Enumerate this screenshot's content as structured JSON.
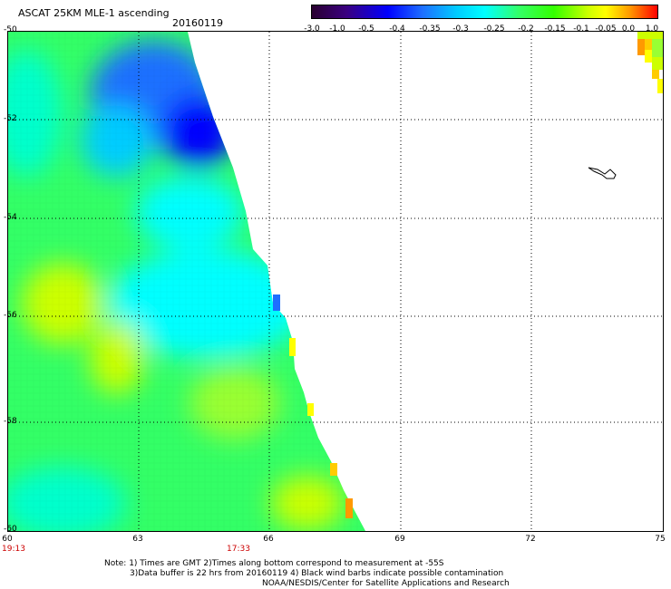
{
  "header": {
    "title": "ASCAT 25KM MLE-1 ascending",
    "date": "20160119"
  },
  "colorbar": {
    "labels": [
      "-3.0",
      "-1.0",
      "-0.5",
      "-0.4",
      "-0.35",
      "-0.3",
      "-0.25",
      "-0.2",
      "-0.15",
      "-0.1",
      "-0.05",
      "0.0",
      "1.0"
    ],
    "colors": [
      "#2a0030",
      "#0000ff",
      "#00ffff",
      "#33ff00",
      "#ffff00",
      "#ff0000"
    ]
  },
  "axes": {
    "lat_labels": [
      "-50",
      "-52",
      "-54",
      "-56",
      "-58",
      "-60"
    ],
    "lon_labels": [
      "60",
      "63",
      "66",
      "69",
      "72",
      "75"
    ],
    "time_labels": [
      "19:13",
      "17:33"
    ]
  },
  "map": {
    "lon_range": [
      60,
      75
    ],
    "lat_range": [
      -60,
      -50
    ],
    "grid_lines": "dotted"
  },
  "notes": {
    "line1": "Note: 1) Times are GMT 2)Times along bottom correspond to measurement at -55S",
    "line2": "3)Data buffer is 22 hrs from 20160119 4) Black wind barbs indicate possible contamination",
    "line3": "NOAA/NESDIS/Center for Satellite Applications and Research"
  }
}
